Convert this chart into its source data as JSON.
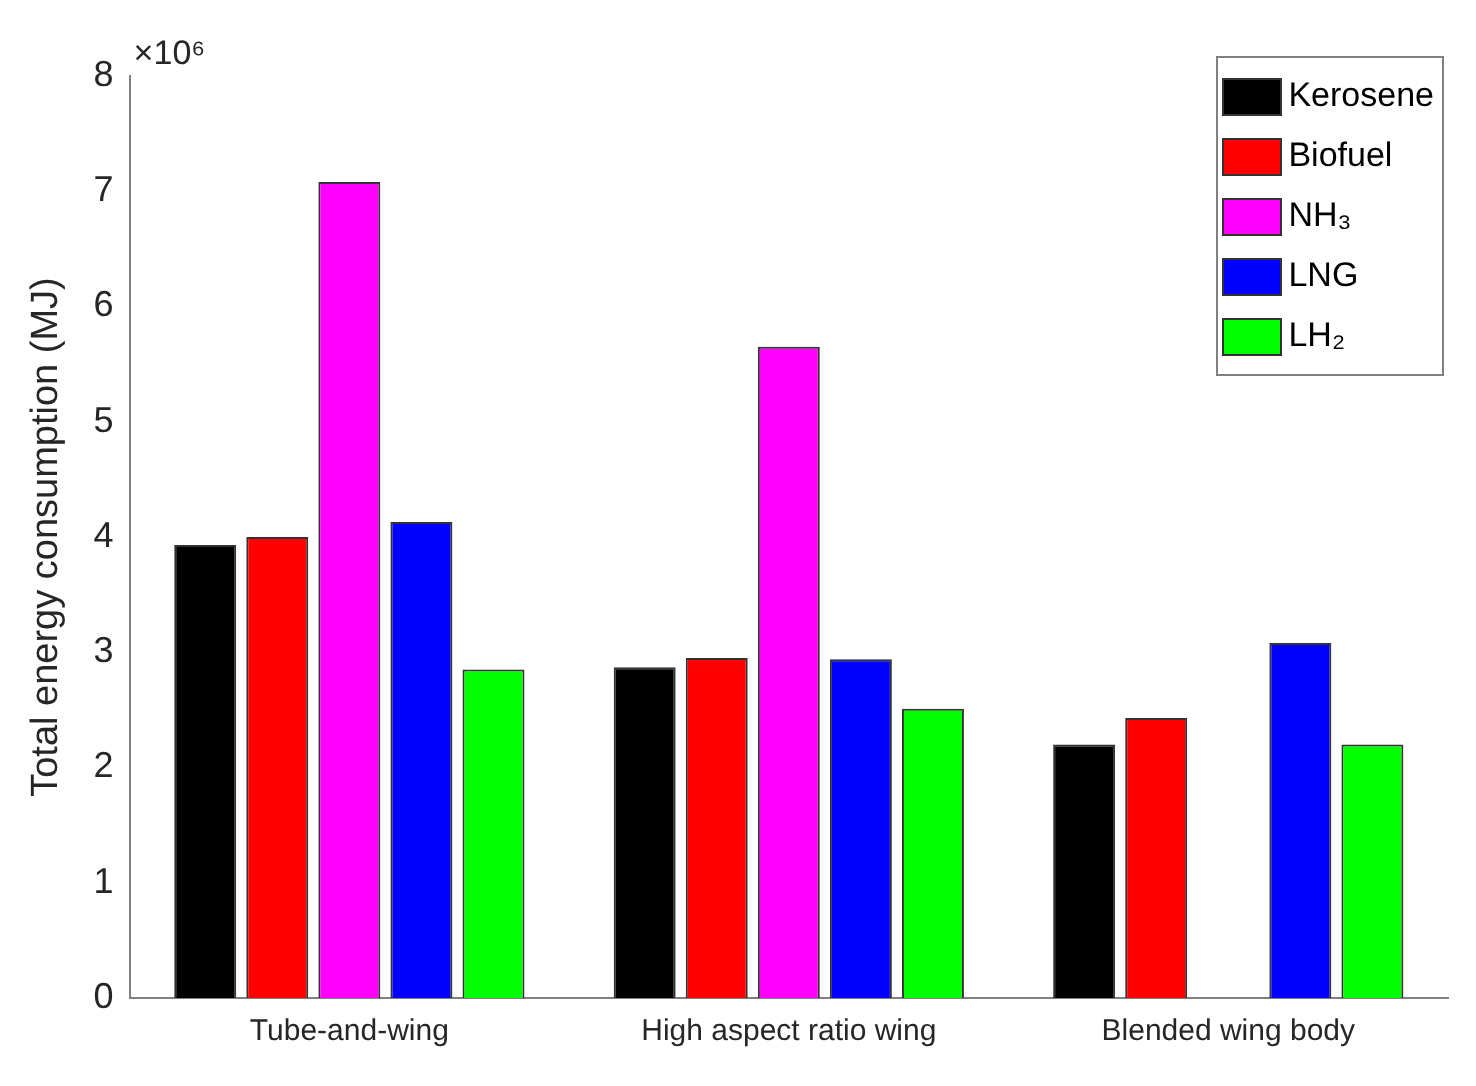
{
  "chart_data": {
    "type": "bar",
    "ylabel": "Total energy consumption (MJ)",
    "annotations": [
      "×10⁶"
    ],
    "categories": [
      "Tube-and-wing",
      "High aspect ratio wing",
      "Blended wing body"
    ],
    "series": [
      {
        "name": "Kerosene",
        "color": "#000000",
        "values": [
          3.93,
          2.87,
          2.2
        ]
      },
      {
        "name": "Biofuel",
        "color": "#ff0000",
        "values": [
          4.0,
          2.95,
          2.43
        ]
      },
      {
        "name": "NH₃",
        "color": "#ff00ff",
        "values": [
          7.08,
          5.65,
          0
        ]
      },
      {
        "name": "LNG",
        "color": "#0000ff",
        "values": [
          4.13,
          2.94,
          3.08
        ]
      },
      {
        "name": "LH₂",
        "color": "#00ff00",
        "values": [
          2.85,
          2.51,
          2.2
        ]
      }
    ],
    "ylim": [
      0,
      8
    ],
    "yticks": [
      0,
      1,
      2,
      3,
      4,
      5,
      6,
      7,
      8
    ],
    "legend": "top right"
  }
}
